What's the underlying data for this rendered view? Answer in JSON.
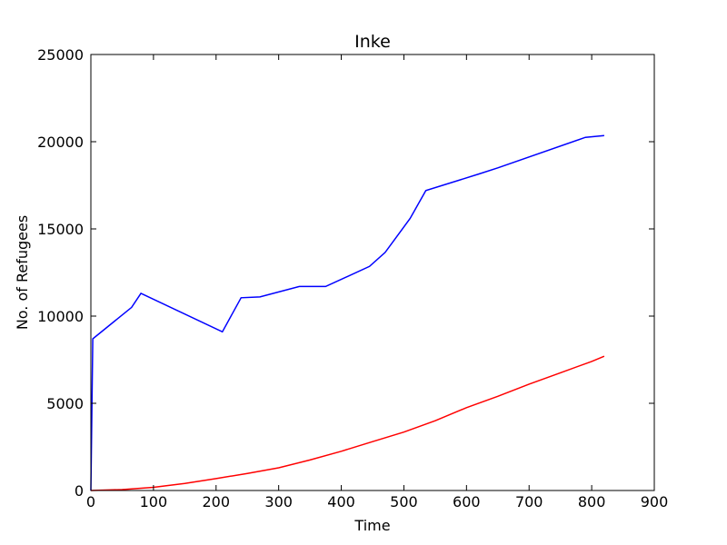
{
  "chart_data": {
    "type": "line",
    "title": "Inke",
    "xlabel": "Time",
    "ylabel": "No. of Refugees",
    "xlim": [
      0,
      900
    ],
    "ylim": [
      0,
      25000
    ],
    "xticks": [
      "0",
      "100",
      "200",
      "300",
      "400",
      "500",
      "600",
      "700",
      "800",
      "900"
    ],
    "yticks": [
      "0",
      "5000",
      "10000",
      "15000",
      "20000",
      "25000"
    ],
    "grid": false,
    "legend": "none",
    "series": [
      {
        "color": "#0000ff",
        "points": [
          [
            0,
            0
          ],
          [
            3,
            8700
          ],
          [
            65,
            10500
          ],
          [
            80,
            11300
          ],
          [
            210,
            9100
          ],
          [
            240,
            11050
          ],
          [
            270,
            11100
          ],
          [
            333,
            11700
          ],
          [
            375,
            11700
          ],
          [
            445,
            12850
          ],
          [
            470,
            13650
          ],
          [
            510,
            15600
          ],
          [
            535,
            17200
          ],
          [
            620,
            18150
          ],
          [
            650,
            18500
          ],
          [
            790,
            20250
          ],
          [
            820,
            20350
          ]
        ]
      },
      {
        "color": "#ff0000",
        "points": [
          [
            0,
            0
          ],
          [
            50,
            50
          ],
          [
            100,
            180
          ],
          [
            150,
            400
          ],
          [
            200,
            680
          ],
          [
            250,
            980
          ],
          [
            300,
            1300
          ],
          [
            350,
            1750
          ],
          [
            400,
            2250
          ],
          [
            450,
            2800
          ],
          [
            500,
            3350
          ],
          [
            550,
            4000
          ],
          [
            600,
            4750
          ],
          [
            650,
            5400
          ],
          [
            700,
            6100
          ],
          [
            750,
            6750
          ],
          [
            800,
            7400
          ],
          [
            820,
            7700
          ]
        ]
      }
    ]
  }
}
